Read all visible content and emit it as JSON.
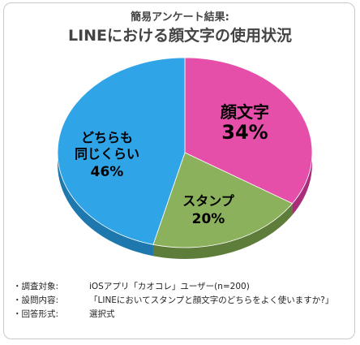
{
  "subtitle": "簡易アンケート結果:",
  "title": "LINEにおける顔文字の使用状況",
  "chart_data": {
    "type": "pie",
    "title": "LINEにおける顔文字の使用状況",
    "start_angle_deg": 0,
    "direction": "clockwise",
    "slices": [
      {
        "label": "顔文字",
        "value": 34,
        "value_label": "34%",
        "color": "#e54faa",
        "side_color": "#a92e79",
        "value_color": "#000000"
      },
      {
        "label": "スタンプ",
        "value": 20,
        "value_label": "20%",
        "color": "#8cb15c",
        "side_color": "#5f7d3a",
        "value_color": "#000000"
      },
      {
        "label": "どちらも\n同じくらい",
        "value": 46,
        "value_label": "46%",
        "color": "#2fa4e7",
        "side_color": "#1f78ad",
        "value_color": "#000000"
      }
    ]
  },
  "notes": [
    {
      "key": "・調査対象:",
      "value": "iOSアプリ「カオコレ」ユーザー(n=200)"
    },
    {
      "key": "・設問内容:",
      "value": "「LINEにおいてスタンプと顔文字のどちらをよく使いますか?」"
    },
    {
      "key": "・回答形式:",
      "value": "選択式"
    }
  ]
}
